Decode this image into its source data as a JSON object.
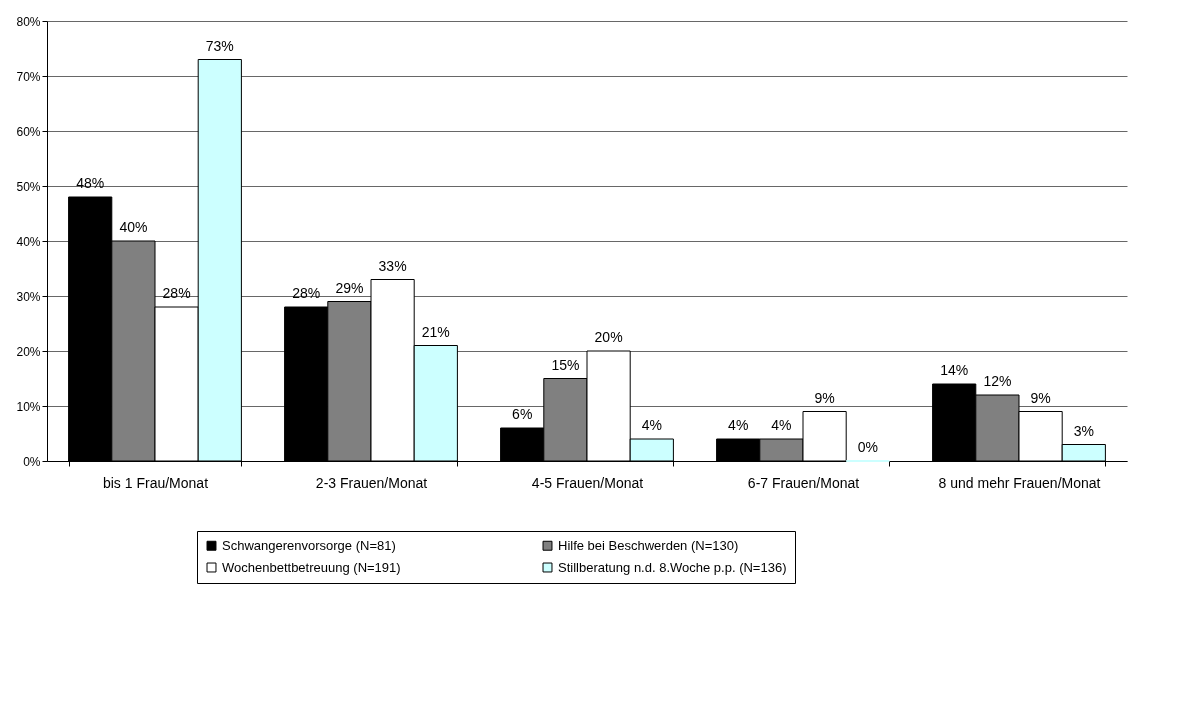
{
  "chart_data": {
    "type": "bar",
    "categories": [
      "bis 1 Frau/Monat",
      "2-3 Frauen/Monat",
      "4-5 Frauen/Monat",
      "6-7 Frauen/Monat",
      "8 und mehr Frauen/Monat"
    ],
    "series": [
      {
        "name": "Schwangerenvorsorge (N=81)",
        "color": "#000000",
        "values": [
          48,
          28,
          6,
          4,
          14
        ],
        "value_labels": [
          "48%",
          "28%",
          "6%",
          "4%",
          "14%"
        ]
      },
      {
        "name": "Hilfe bei Beschwerden (N=130)",
        "color": "#808080",
        "values": [
          40,
          29,
          15,
          4,
          12
        ],
        "value_labels": [
          "40%",
          "29%",
          "15%",
          "4%",
          "12%"
        ]
      },
      {
        "name": "Wochenbettbetreuung (N=191)",
        "color": "#ffffff",
        "values": [
          28,
          33,
          20,
          9,
          9
        ],
        "value_labels": [
          "28%",
          "33%",
          "20%",
          "9%",
          "9%"
        ]
      },
      {
        "name": "Stillberatung n.d. 8.Woche p.p. (N=136)",
        "color": "#ccffff",
        "values": [
          73,
          21,
          4,
          0,
          3
        ],
        "value_labels": [
          "73%",
          "21%",
          "4%",
          "0%",
          "3%"
        ]
      }
    ],
    "ylim": [
      0,
      80
    ],
    "yticks": [
      {
        "value": 0,
        "label": "0%"
      },
      {
        "value": 10,
        "label": "10%"
      },
      {
        "value": 20,
        "label": "20%"
      },
      {
        "value": 30,
        "label": "30%"
      },
      {
        "value": 40,
        "label": "40%"
      },
      {
        "value": 50,
        "label": "50%"
      },
      {
        "value": 60,
        "label": "60%"
      },
      {
        "value": 70,
        "label": "70%"
      },
      {
        "value": 80,
        "label": "80%"
      }
    ],
    "grid": "y",
    "legend": "bottom"
  }
}
